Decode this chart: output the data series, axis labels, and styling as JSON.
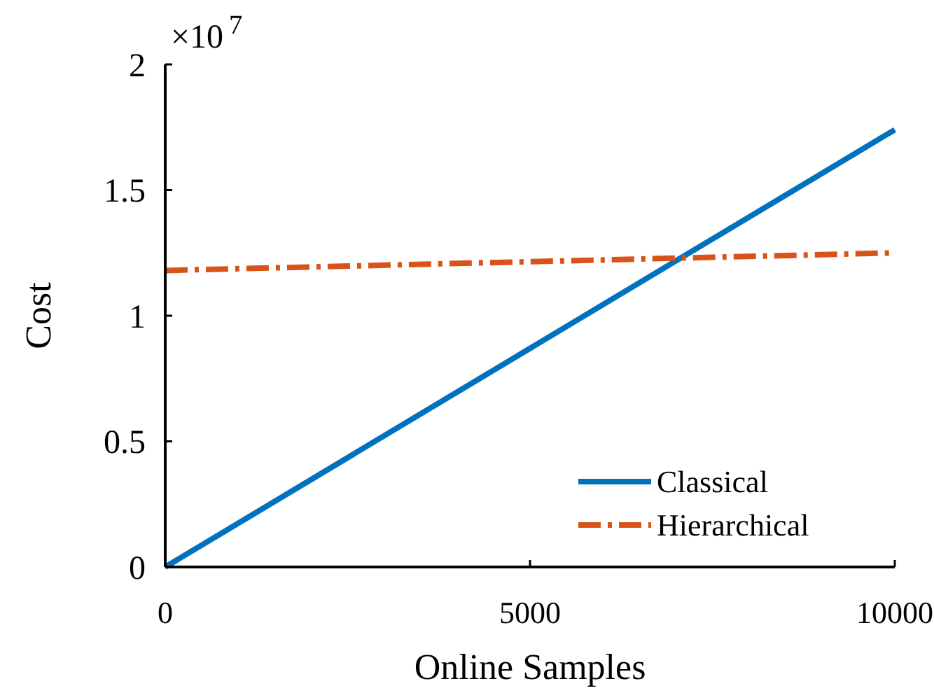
{
  "chart_data": {
    "type": "line",
    "xlabel": "Online Samples",
    "ylabel": "Cost",
    "annotations": [
      "×10$^{7}$"
    ],
    "x": [
      0,
      10000
    ],
    "xlim": [
      0,
      10000
    ],
    "xticks": [
      0,
      5000,
      10000
    ],
    "ylim": [
      0,
      2
    ],
    "yticks": [
      0,
      0.5,
      1,
      1.5,
      2
    ],
    "grid": false,
    "legend": "bottom right",
    "series": [
      {
        "name": "Classical",
        "color": "#0072bd",
        "values": [
          0,
          1.74
        ],
        "line_style": "solid"
      },
      {
        "name": "Hierarchical",
        "color": "#d95319",
        "values": [
          1.18,
          1.25
        ],
        "line_style": "dashed"
      }
    ]
  }
}
